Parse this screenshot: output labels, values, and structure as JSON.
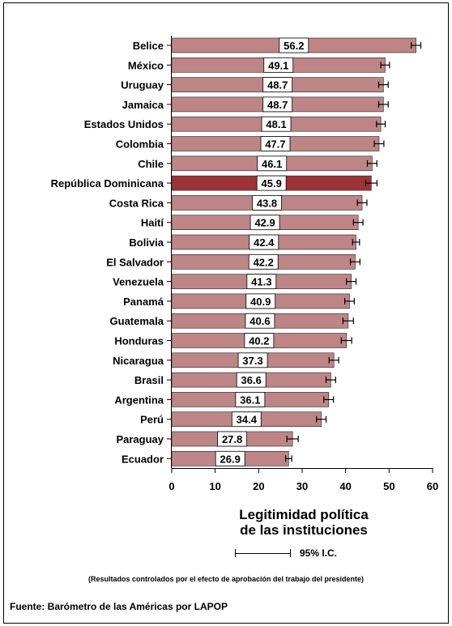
{
  "chart_data": {
    "type": "bar",
    "orientation": "horizontal",
    "categories": [
      "Belice",
      "México",
      "Uruguay",
      "Jamaica",
      "Estados Unidos",
      "Colombia",
      "Chile",
      "República Dominicana",
      "Costa Rica",
      "Haití",
      "Bolivia",
      "El Salvador",
      "Venezuela",
      "Panamá",
      "Guatemala",
      "Honduras",
      "Nicaragua",
      "Brasil",
      "Argentina",
      "Perú",
      "Paraguay",
      "Ecuador"
    ],
    "values": [
      56.2,
      49.1,
      48.7,
      48.7,
      48.1,
      47.7,
      46.1,
      45.9,
      43.8,
      42.9,
      42.4,
      42.2,
      41.3,
      40.9,
      40.6,
      40.2,
      37.3,
      36.6,
      36.1,
      34.4,
      27.8,
      26.9
    ],
    "value_labels": [
      "56.2",
      "49.1",
      "48.7",
      "48.7",
      "48.1",
      "47.7",
      "46.1",
      "45.9",
      "43.8",
      "42.9",
      "42.4",
      "42.2",
      "41.3",
      "40.9",
      "40.6",
      "40.2",
      "37.3",
      "36.6",
      "36.1",
      "34.4",
      "27.8",
      "26.9"
    ],
    "ci_halfwidth": [
      1.1,
      1.0,
      1.1,
      1.1,
      1.0,
      1.1,
      1.1,
      1.3,
      1.1,
      1.1,
      0.8,
      1.1,
      1.1,
      1.1,
      1.2,
      1.2,
      1.1,
      1.1,
      1.1,
      1.1,
      1.3,
      0.7
    ],
    "highlight_category": "República Dominicana",
    "xlim": [
      0,
      60
    ],
    "xticks": [
      0,
      10,
      20,
      30,
      40,
      50,
      60
    ],
    "xlabel_line1": "Legitimidad política",
    "xlabel_line2": "de las instituciones",
    "grid": false,
    "colors": {
      "bar": "#bd8585",
      "highlight": "#9b3337",
      "label_box": "#ffffff"
    }
  },
  "legend": {
    "label": "95% I.C."
  },
  "note": "(Resultados controlados por el efecto de aprobación del trabajo del presidente)",
  "source": "Fuente: Barómetro de las Américas por LAPOP"
}
